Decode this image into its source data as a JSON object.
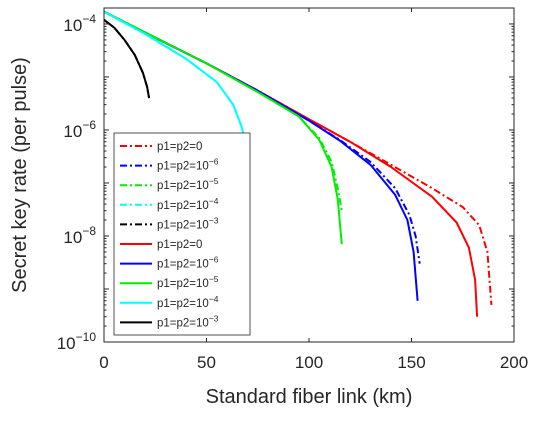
{
  "chart_data": {
    "type": "line",
    "xlabel": "Standard fiber link (km)",
    "ylabel": "Secret key rate (per pulse)",
    "xlim": [
      0,
      200
    ],
    "ylim": [
      1e-10,
      0.0002
    ],
    "y_scale": "log",
    "grid": false,
    "legend_position": "left-middle",
    "x_ticks": [
      {
        "value": 0,
        "label": "0"
      },
      {
        "value": 50,
        "label": "50"
      },
      {
        "value": 100,
        "label": "100"
      },
      {
        "value": 150,
        "label": "150"
      },
      {
        "value": 200,
        "label": "200"
      }
    ],
    "y_ticks": [
      {
        "value": 1e-10,
        "base": "10",
        "exp": "−10"
      },
      {
        "value": 1e-08,
        "base": "10",
        "exp": "−8"
      },
      {
        "value": 1e-06,
        "base": "10",
        "exp": "−6"
      },
      {
        "value": 0.0001,
        "base": "10",
        "exp": "−4"
      }
    ],
    "series": [
      {
        "name": "p1=p2=0",
        "name_exp": "",
        "color": "#ff0000",
        "dash": "dashdot",
        "x": [
          0,
          25,
          50,
          75,
          100,
          120,
          140,
          160,
          175,
          183,
          187,
          189
        ],
        "y": [
          0.00017,
          5.5e-05,
          1.8e-05,
          5.5e-06,
          1.6e-06,
          6e-07,
          2.2e-07,
          8e-08,
          3.5e-08,
          1.6e-08,
          5e-09,
          5e-10
        ]
      },
      {
        "name": "p1=p2=10",
        "name_exp": "−6",
        "color": "#0000ff",
        "dash": "dashdot",
        "x": [
          0,
          25,
          50,
          75,
          100,
          115,
          130,
          142,
          149,
          152,
          154
        ],
        "y": [
          0.00017,
          5.5e-05,
          1.8e-05,
          5.5e-06,
          1.5e-06,
          6.5e-07,
          2.5e-07,
          8e-08,
          2.5e-08,
          1e-08,
          3e-09
        ]
      },
      {
        "name": "p1=p2=10",
        "name_exp": "−5",
        "color": "#00ee00",
        "dash": "dashdot",
        "x": [
          0,
          25,
          50,
          75,
          95,
          105,
          111,
          114,
          116
        ],
        "y": [
          0.00017,
          5.5e-05,
          1.8e-05,
          5.2e-06,
          1.8e-06,
          7e-07,
          2.5e-07,
          8e-08,
          3e-08
        ]
      },
      {
        "name": "p1=p2=10",
        "name_exp": "−4",
        "color": "#00ffff",
        "dash": "dashdot",
        "x": [
          0,
          20,
          40,
          55,
          63,
          67,
          69,
          70
        ],
        "y": [
          0.00017,
          6.5e-05,
          2.2e-05,
          8e-06,
          3e-06,
          1.2e-06,
          6e-07,
          2.5e-07
        ]
      },
      {
        "name": "p1=p2=10",
        "name_exp": "−3",
        "color": "#000000",
        "dash": "dashdot",
        "x": [
          0,
          5,
          10,
          15,
          19,
          21,
          22
        ],
        "y": [
          0.00012,
          8.5e-05,
          5e-05,
          2.6e-05,
          1.2e-05,
          6.5e-06,
          4e-06
        ]
      },
      {
        "name": "p1=p2=0",
        "name_exp": "",
        "color": "#ff0000",
        "dash": "solid",
        "x": [
          0,
          25,
          50,
          75,
          100,
          120,
          140,
          160,
          172,
          178,
          181,
          182
        ],
        "y": [
          0.00017,
          5.5e-05,
          1.8e-05,
          5.5e-06,
          1.6e-06,
          6e-07,
          2e-07,
          5.5e-08,
          1.8e-08,
          6e-09,
          1.5e-09,
          3e-10
        ]
      },
      {
        "name": "p1=p2=10",
        "name_exp": "−6",
        "color": "#0000ff",
        "dash": "solid",
        "x": [
          0,
          25,
          50,
          75,
          100,
          115,
          130,
          142,
          148,
          151,
          153
        ],
        "y": [
          0.00017,
          5.5e-05,
          1.8e-05,
          5.5e-06,
          1.5e-06,
          6.3e-07,
          2.2e-07,
          6e-08,
          2e-08,
          5e-09,
          6e-10
        ]
      },
      {
        "name": "p1=p2=10",
        "name_exp": "−5",
        "color": "#00ee00",
        "dash": "solid",
        "x": [
          0,
          25,
          50,
          75,
          95,
          105,
          111,
          114,
          116
        ],
        "y": [
          0.00017,
          5.5e-05,
          1.8e-05,
          5.2e-06,
          1.8e-06,
          6.5e-07,
          2e-07,
          5e-08,
          7e-09
        ]
      },
      {
        "name": "p1=p2=10",
        "name_exp": "−4",
        "color": "#00ffff",
        "dash": "solid",
        "x": [
          0,
          20,
          40,
          55,
          63,
          67,
          69,
          70
        ],
        "y": [
          0.00017,
          6.5e-05,
          2.2e-05,
          8e-06,
          3e-06,
          1.2e-06,
          6e-07,
          2.5e-07
        ]
      },
      {
        "name": "p1=p2=10",
        "name_exp": "−3",
        "color": "#000000",
        "dash": "solid",
        "x": [
          0,
          5,
          10,
          15,
          19,
          21,
          22
        ],
        "y": [
          0.00012,
          8.5e-05,
          5e-05,
          2.6e-05,
          1.2e-05,
          6.5e-06,
          4e-06
        ]
      }
    ]
  }
}
